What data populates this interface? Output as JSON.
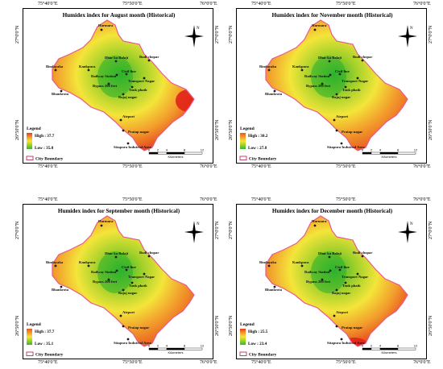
{
  "panels": [
    {
      "title": "Humidex index for August month (Historical)",
      "legend": {
        "heading": "Legend",
        "high": "High : 37.7",
        "low": "Low : 35.0",
        "boundary": "City Boundary"
      },
      "palette": [
        "#2fb830",
        "#9fd02a",
        "#f4e53a",
        "#f29a2c",
        "#e43a1c"
      ],
      "hot_zone": "east"
    },
    {
      "title": "Humidex index for November month (Historical)",
      "legend": {
        "heading": "Legend",
        "high": "High : 30.2",
        "low": "Low : 27.8",
        "boundary": "City Boundary"
      },
      "palette": [
        "#2fb830",
        "#9fd02a",
        "#f4e53a",
        "#f29a2c",
        "#e8591e"
      ],
      "hot_zone": "none"
    },
    {
      "title": "Humidex index for September month (Historical)",
      "legend": {
        "heading": "Legend",
        "high": "High : 37.7",
        "low": "Low : 35.1",
        "boundary": "City Boundary"
      },
      "palette": [
        "#2fb830",
        "#9fd02a",
        "#f4e53a",
        "#f29a2c",
        "#e8591e"
      ],
      "hot_zone": "none"
    },
    {
      "title": "Humidex index for December month (Historical)",
      "legend": {
        "heading": "Legend",
        "high": "High : 25.5",
        "low": "Low : 23.4",
        "boundary": "City Boundary"
      },
      "palette": [
        "#2fb830",
        "#9fd02a",
        "#f4e53a",
        "#f29a2c",
        "#e43a1c"
      ],
      "hot_zone": "south"
    }
  ],
  "places": [
    {
      "name": "Harmara"
    },
    {
      "name": "Dhar ka Balaji"
    },
    {
      "name": "Budi chopar"
    },
    {
      "name": "Bindayaka"
    },
    {
      "name": "Kankpura"
    },
    {
      "name": "Railway Station"
    },
    {
      "name": "Civil line"
    },
    {
      "name": "Transport Nagar"
    },
    {
      "name": "Bypass 200 feet"
    },
    {
      "name": "Tonk phatk"
    },
    {
      "name": "Bhankrota"
    },
    {
      "name": "Bajaj nagar"
    },
    {
      "name": "Airport"
    },
    {
      "name": "Pratap nagar"
    },
    {
      "name": "Sitapura Indutrial Area"
    }
  ],
  "graticule": {
    "top": [
      "75°40'0\"E",
      "75°50'0\"E",
      "76°0'0\"E"
    ],
    "bottom": [
      "75°40'0\"E",
      "75°50'0\"E",
      "76°0'0\"E"
    ],
    "left": [
      "27°0'0\"N",
      "26°50'0\"N"
    ],
    "right": [
      "27°0'0\"N",
      "26°50'0\"N"
    ]
  },
  "scalebar": {
    "ticks": [
      "0",
      "2",
      "4",
      "8",
      "12"
    ],
    "unit": "Kilometers"
  },
  "north_label": "N",
  "colors": {
    "boundary": "#e85a8c",
    "point": "#1a1a1a"
  }
}
